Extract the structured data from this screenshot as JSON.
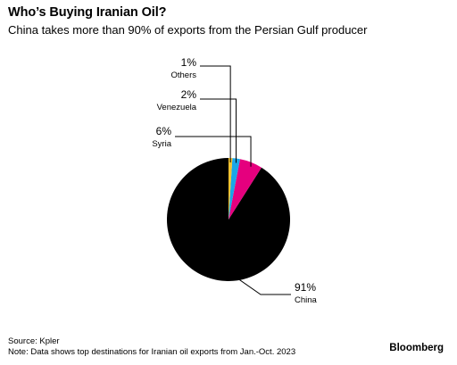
{
  "header": {
    "title": "Who’s Buying Iranian Oil?",
    "subtitle": "China takes more than 90% of exports from the Persian Gulf producer"
  },
  "footer": {
    "source": "Source: Kpler",
    "note": "Note: Data shows top destinations for Iranian oil exports from Jan.-Oct. 2023",
    "brand": "Bloomberg"
  },
  "chart_data": {
    "type": "pie",
    "title": "Who’s Buying Iranian Oil?",
    "subtitle": "China takes more than 90% of exports from the Persian Gulf producer",
    "slices": [
      {
        "label": "China",
        "value": 91,
        "display": "91%",
        "color": "#000000"
      },
      {
        "label": "Syria",
        "value": 6,
        "display": "6%",
        "color": "#e5007e"
      },
      {
        "label": "Venezuela",
        "value": 2,
        "display": "2%",
        "color": "#1aa6e8"
      },
      {
        "label": "Others",
        "value": 1,
        "display": "1%",
        "color": "#f2c230"
      }
    ],
    "start": "12 o'clock",
    "direction": "counterclockwise",
    "legend": "none",
    "labels": "callout leaders"
  }
}
